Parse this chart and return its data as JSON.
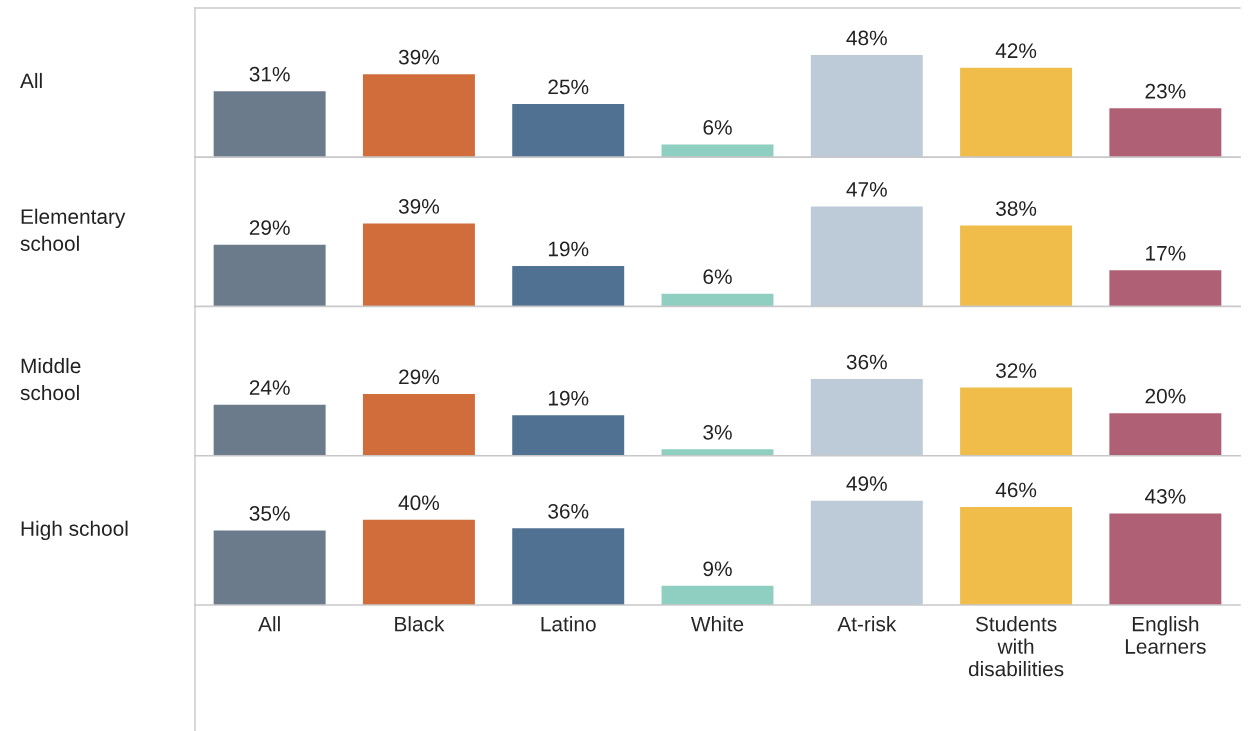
{
  "chart_data": [
    {
      "type": "bar",
      "ylabel": "All",
      "categories": [
        null,
        null,
        null,
        null,
        null,
        null,
        null
      ],
      "values": [
        31,
        39,
        25,
        6,
        48,
        42,
        23
      ],
      "value_labels": [
        "31%",
        "39%",
        "25%",
        "6%",
        "48%",
        "42%",
        "23%"
      ],
      "colors": [
        "#6b7b8c",
        "#d06d3b",
        "#517193",
        "#8ecfc2",
        "#bdcad7",
        "#f0bd4a",
        "#b06075"
      ],
      "tick_labels": false
    },
    {
      "type": "bar",
      "ylabel": "Elementary\nschool",
      "categories": [
        null,
        null,
        null,
        null,
        null,
        null,
        null
      ],
      "values": [
        29,
        39,
        19,
        6,
        47,
        38,
        17
      ],
      "value_labels": [
        "29%",
        "39%",
        "19%",
        "6%",
        "47%",
        "38%",
        "17%"
      ],
      "colors": [
        "#6b7b8c",
        "#d06d3b",
        "#517193",
        "#8ecfc2",
        "#bdcad7",
        "#f0bd4a",
        "#b06075"
      ],
      "tick_labels": false
    },
    {
      "type": "bar",
      "ylabel": "Middle\nschool",
      "categories": [
        null,
        null,
        null,
        null,
        null,
        null,
        null
      ],
      "values": [
        24,
        29,
        19,
        3,
        36,
        32,
        20
      ],
      "value_labels": [
        "24%",
        "29%",
        "19%",
        "3%",
        "36%",
        "32%",
        "20%"
      ],
      "colors": [
        "#6b7b8c",
        "#d06d3b",
        "#517193",
        "#8ecfc2",
        "#bdcad7",
        "#f0bd4a",
        "#b06075"
      ],
      "tick_labels": false
    },
    {
      "type": "bar",
      "ylabel": "High school",
      "categories": [
        "All",
        "Black",
        "Latino",
        "White",
        "At-risk",
        "Students\nwith\ndisabilities",
        "English\nLearners"
      ],
      "values": [
        35,
        40,
        36,
        9,
        49,
        46,
        43
      ],
      "value_labels": [
        "35%",
        "40%",
        "36%",
        "9%",
        "49%",
        "46%",
        "43%"
      ],
      "colors": [
        "#6b7b8c",
        "#d06d3b",
        "#517193",
        "#8ecfc2",
        "#bdcad7",
        "#f0bd4a",
        "#b06075"
      ],
      "tick_labels": "x"
    }
  ]
}
